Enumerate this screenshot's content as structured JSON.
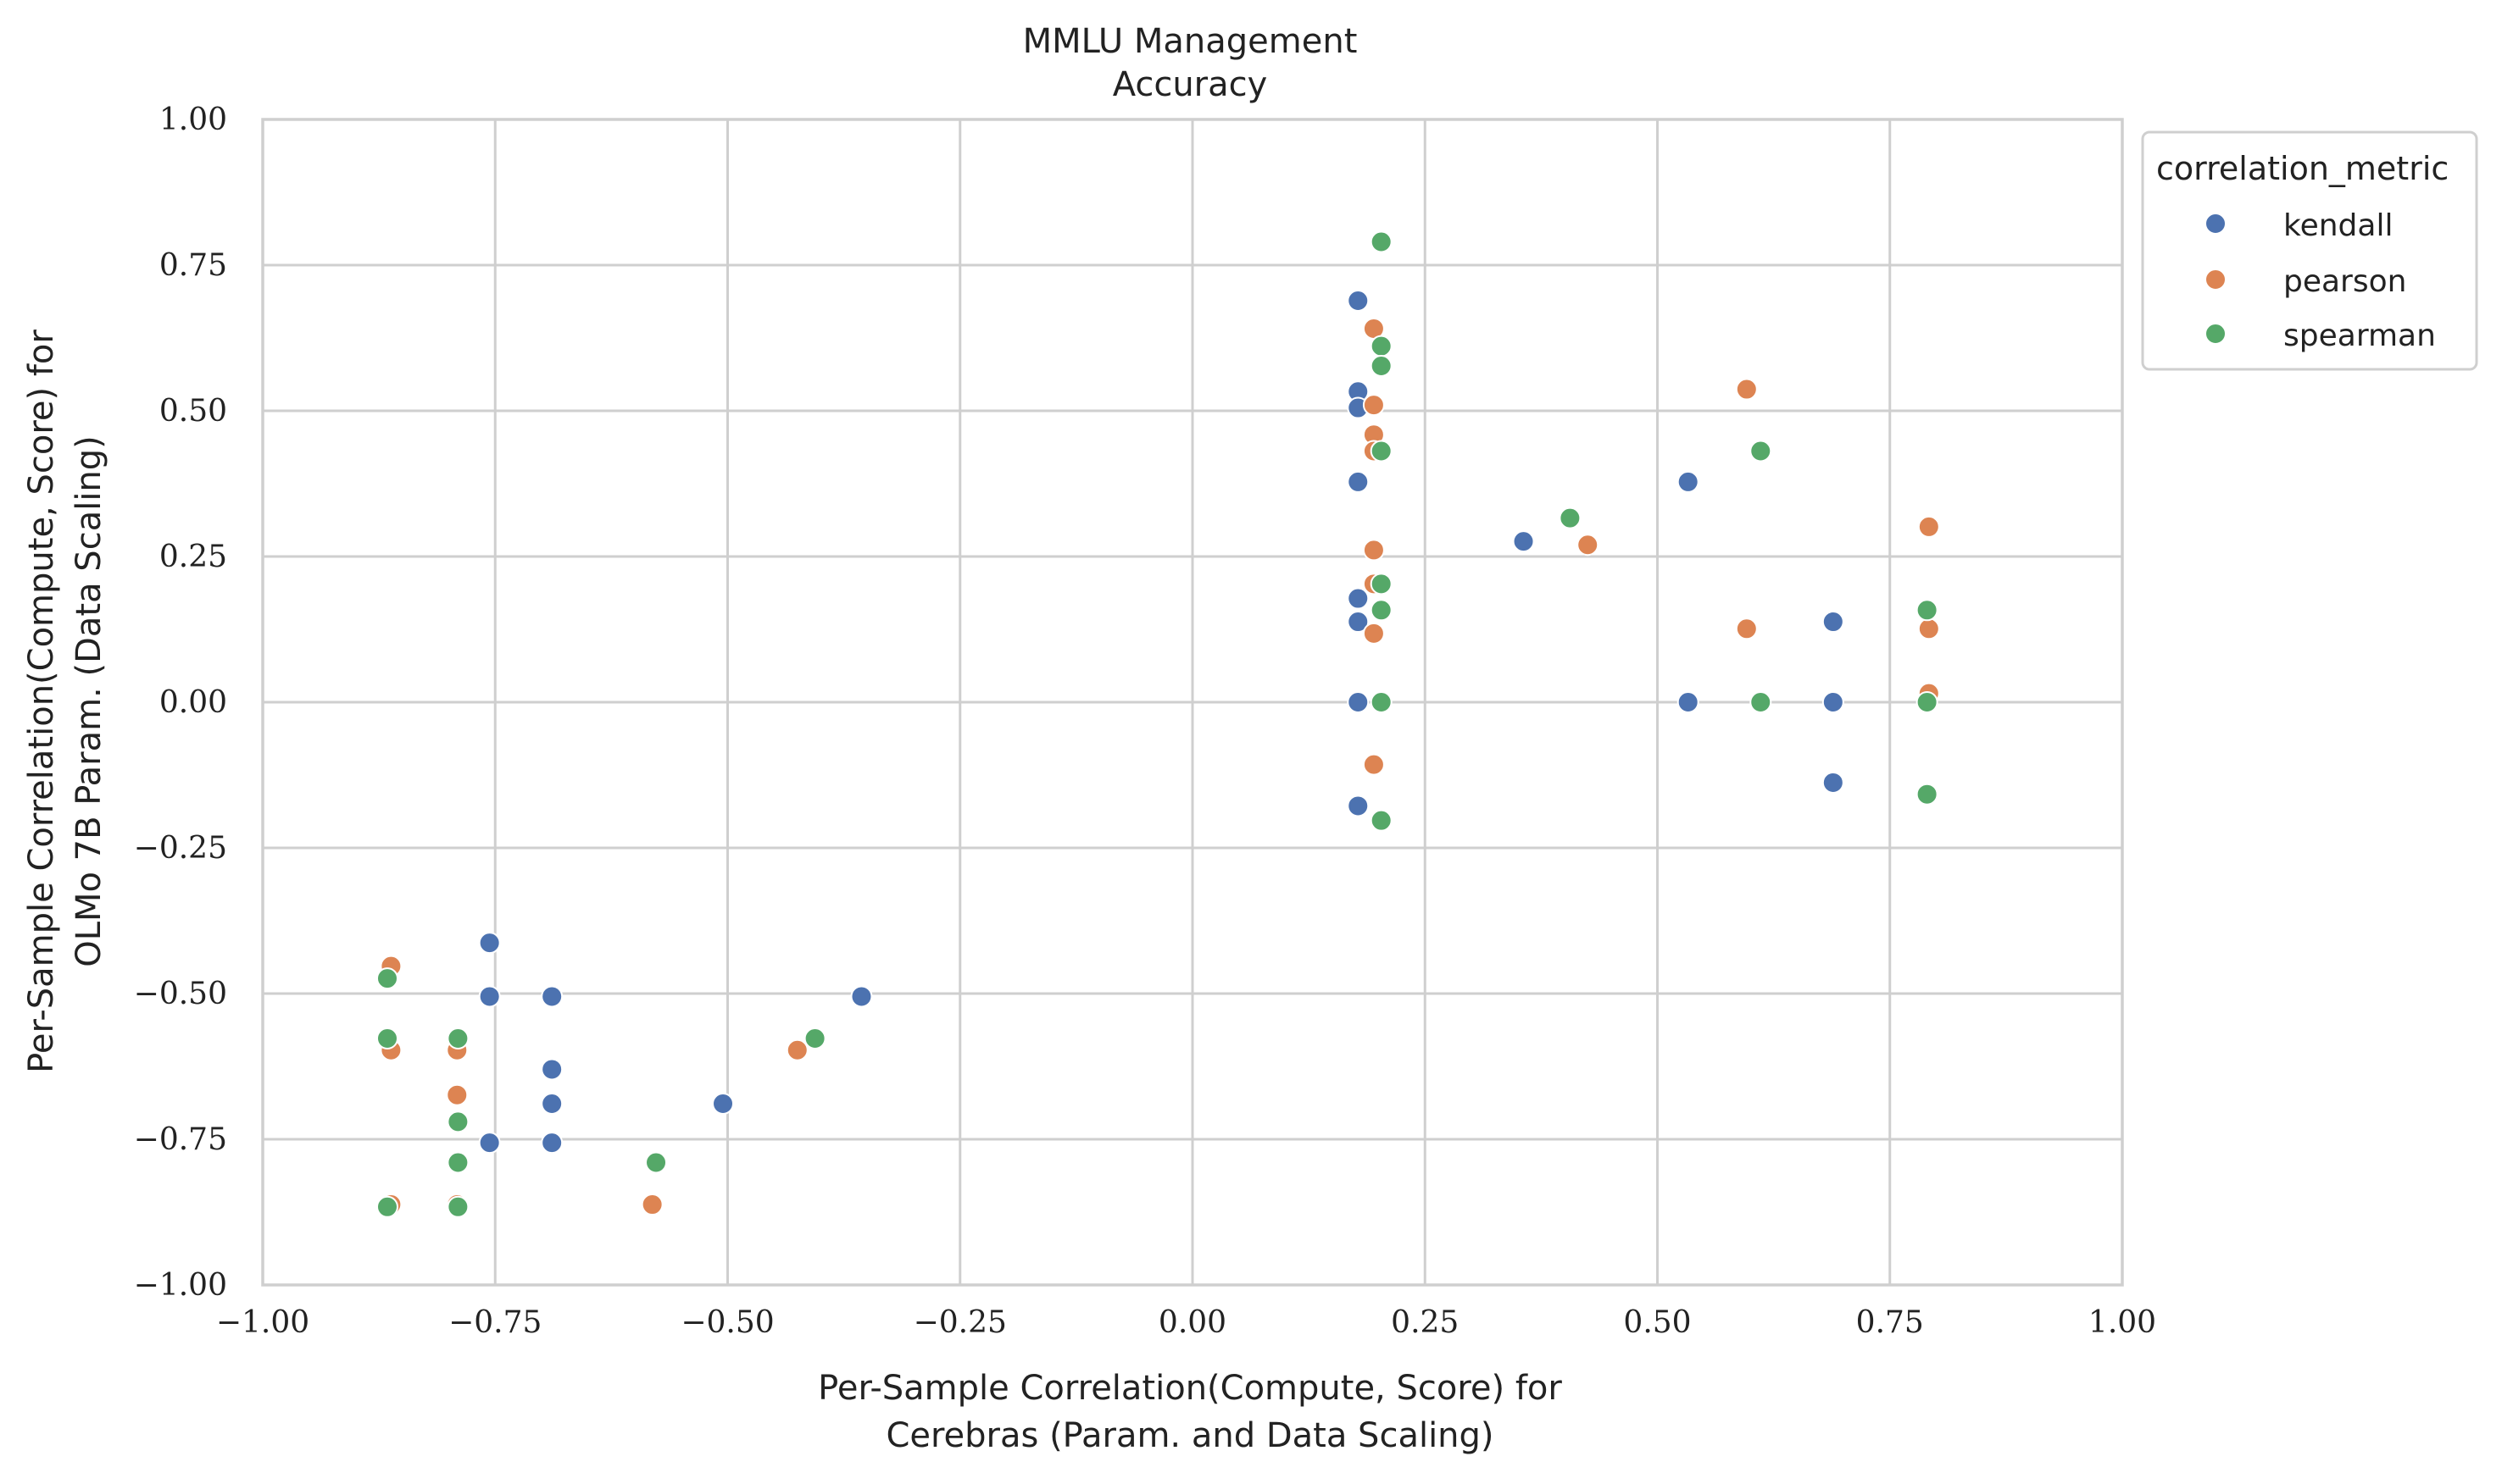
{
  "chart_data": {
    "type": "scatter",
    "title_lines": [
      "MMLU Management",
      "Accuracy"
    ],
    "xlabel_lines": [
      "Per-Sample Correlation(Compute, Score) for",
      "Cerebras (Param. and Data Scaling)"
    ],
    "ylabel_lines": [
      "Per-Sample Correlation(Compute, Score) for",
      "OLMo 7B Param. (Data Scaling)"
    ],
    "xlim": [
      -1.0,
      1.0
    ],
    "ylim": [
      -1.0,
      1.0
    ],
    "xticks": [
      -1.0,
      -0.75,
      -0.5,
      -0.25,
      0.0,
      0.25,
      0.5,
      0.75,
      1.0
    ],
    "yticks": [
      -1.0,
      -0.75,
      -0.5,
      -0.25,
      0.0,
      0.25,
      0.5,
      0.75,
      1.0
    ],
    "xtick_labels": [
      "−1.00",
      "−0.75",
      "−0.50",
      "−0.25",
      "0.00",
      "0.25",
      "0.50",
      "0.75",
      "1.00"
    ],
    "ytick_labels": [
      "−1.00",
      "−0.75",
      "−0.50",
      "−0.25",
      "0.00",
      "0.25",
      "0.50",
      "0.75",
      "1.00"
    ],
    "grid": true,
    "legend": {
      "title": "correlation_metric",
      "placement": "outside-top-right"
    },
    "series": [
      {
        "name": "kendall",
        "color": "#4c72b0",
        "points": [
          [
            0.178,
            0.689
          ],
          [
            0.178,
            0.533
          ],
          [
            0.178,
            0.505
          ],
          [
            0.178,
            0.378
          ],
          [
            0.178,
            0.178
          ],
          [
            0.178,
            0.138
          ],
          [
            0.178,
            0.0
          ],
          [
            0.178,
            -0.178
          ],
          [
            0.356,
            0.276
          ],
          [
            0.533,
            0.378
          ],
          [
            0.533,
            0.0
          ],
          [
            0.689,
            0.138
          ],
          [
            0.689,
            0.0
          ],
          [
            0.689,
            -0.138
          ],
          [
            -0.756,
            -0.413
          ],
          [
            -0.756,
            -0.505
          ],
          [
            -0.756,
            -0.756
          ],
          [
            -0.689,
            -0.505
          ],
          [
            -0.689,
            -0.63
          ],
          [
            -0.689,
            -0.689
          ],
          [
            -0.689,
            -0.756
          ],
          [
            -0.505,
            -0.689
          ],
          [
            -0.356,
            -0.505
          ]
        ]
      },
      {
        "name": "pearson",
        "color": "#dd8452",
        "points": [
          [
            0.195,
            0.641
          ],
          [
            0.195,
            0.51
          ],
          [
            0.195,
            0.459
          ],
          [
            0.195,
            0.431
          ],
          [
            0.195,
            0.261
          ],
          [
            0.195,
            0.203
          ],
          [
            0.195,
            0.118
          ],
          [
            0.195,
            -0.107
          ],
          [
            0.425,
            0.27
          ],
          [
            0.596,
            0.537
          ],
          [
            0.596,
            0.126
          ],
          [
            0.792,
            0.301
          ],
          [
            0.792,
            0.126
          ],
          [
            0.792,
            0.015
          ],
          [
            -0.862,
            -0.453
          ],
          [
            -0.862,
            -0.597
          ],
          [
            -0.862,
            -0.862
          ],
          [
            -0.791,
            -0.597
          ],
          [
            -0.791,
            -0.674
          ],
          [
            -0.791,
            -0.862
          ],
          [
            -0.581,
            -0.862
          ],
          [
            -0.425,
            -0.597
          ]
        ]
      },
      {
        "name": "spearman",
        "color": "#55a868",
        "points": [
          [
            0.203,
            0.79
          ],
          [
            0.203,
            0.611
          ],
          [
            0.203,
            0.577
          ],
          [
            0.203,
            0.431
          ],
          [
            0.203,
            0.203
          ],
          [
            0.203,
            0.158
          ],
          [
            0.203,
            0.0
          ],
          [
            0.203,
            -0.203
          ],
          [
            0.406,
            0.316
          ],
          [
            0.611,
            0.431
          ],
          [
            0.611,
            0.0
          ],
          [
            0.79,
            0.158
          ],
          [
            0.79,
            0.0
          ],
          [
            0.79,
            -0.158
          ],
          [
            -0.866,
            -0.474
          ],
          [
            -0.866,
            -0.577
          ],
          [
            -0.866,
            -0.866
          ],
          [
            -0.79,
            -0.577
          ],
          [
            -0.79,
            -0.72
          ],
          [
            -0.79,
            -0.79
          ],
          [
            -0.79,
            -0.866
          ],
          [
            -0.577,
            -0.79
          ],
          [
            -0.406,
            -0.577
          ]
        ]
      }
    ]
  }
}
